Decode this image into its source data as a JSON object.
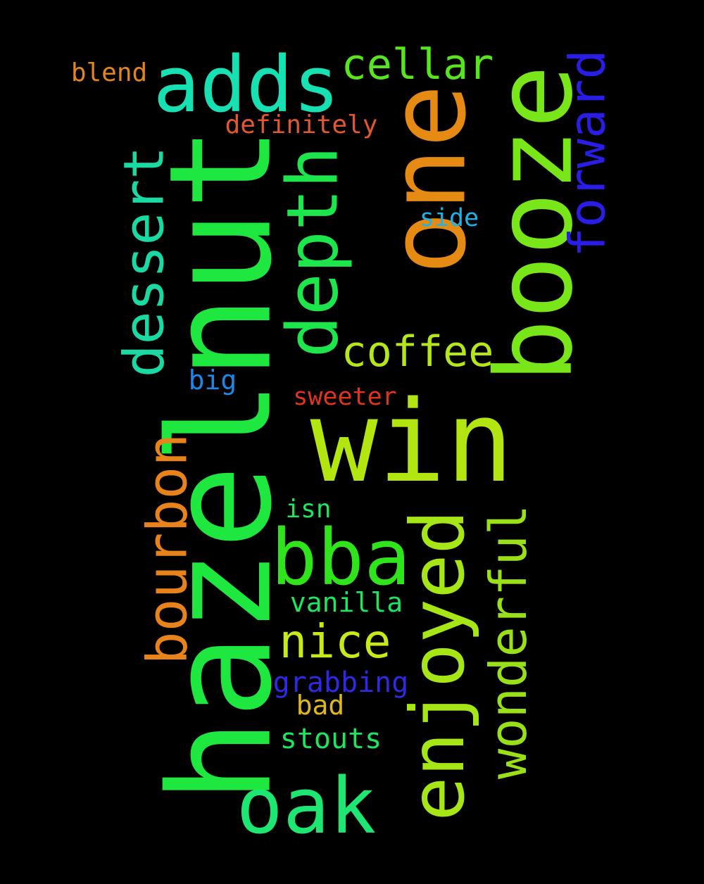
{
  "words": [
    {
      "text": "hazelnut",
      "color": "#1ee83f",
      "rotated": true
    },
    {
      "text": "win",
      "color": "#b3e611",
      "rotated": false
    },
    {
      "text": "one",
      "color": "#e58b14",
      "rotated": true
    },
    {
      "text": "booze",
      "color": "#79e619",
      "rotated": true
    },
    {
      "text": "adds",
      "color": "#17e0b2",
      "rotated": false
    },
    {
      "text": "enjoyed",
      "color": "#a6e617",
      "rotated": true
    },
    {
      "text": "bba",
      "color": "#2fe41a",
      "rotated": false
    },
    {
      "text": "oak",
      "color": "#1ee672",
      "rotated": false
    },
    {
      "text": "depth",
      "color": "#1de64d",
      "rotated": true
    },
    {
      "text": "wonderful",
      "color": "#9ae019",
      "rotated": true
    },
    {
      "text": "dessert",
      "color": "#1ad9a3",
      "rotated": true
    },
    {
      "text": "bourbon",
      "color": "#e8821b",
      "rotated": true
    },
    {
      "text": "forward",
      "color": "#2a1de6",
      "rotated": true
    },
    {
      "text": "cellar",
      "color": "#57e61e",
      "rotated": false
    },
    {
      "text": "coffee",
      "color": "#b5e617",
      "rotated": false
    },
    {
      "text": "nice",
      "color": "#c8e81a",
      "rotated": false
    },
    {
      "text": "blend",
      "color": "#e2851d",
      "rotated": false
    },
    {
      "text": "definitely",
      "color": "#e2582e",
      "rotated": false
    },
    {
      "text": "side",
      "color": "#1eb3e6",
      "rotated": false
    },
    {
      "text": "big",
      "color": "#1e86e6",
      "rotated": false
    },
    {
      "text": "sweeter",
      "color": "#e2341d",
      "rotated": false
    },
    {
      "text": "isn",
      "color": "#1ee65e",
      "rotated": false
    },
    {
      "text": "vanilla",
      "color": "#1ee65e",
      "rotated": false
    },
    {
      "text": "grabbing",
      "color": "#2f2ae0",
      "rotated": false
    },
    {
      "text": "bad",
      "color": "#e0b81c",
      "rotated": false
    },
    {
      "text": "stouts",
      "color": "#1de65e",
      "rotated": false
    }
  ]
}
